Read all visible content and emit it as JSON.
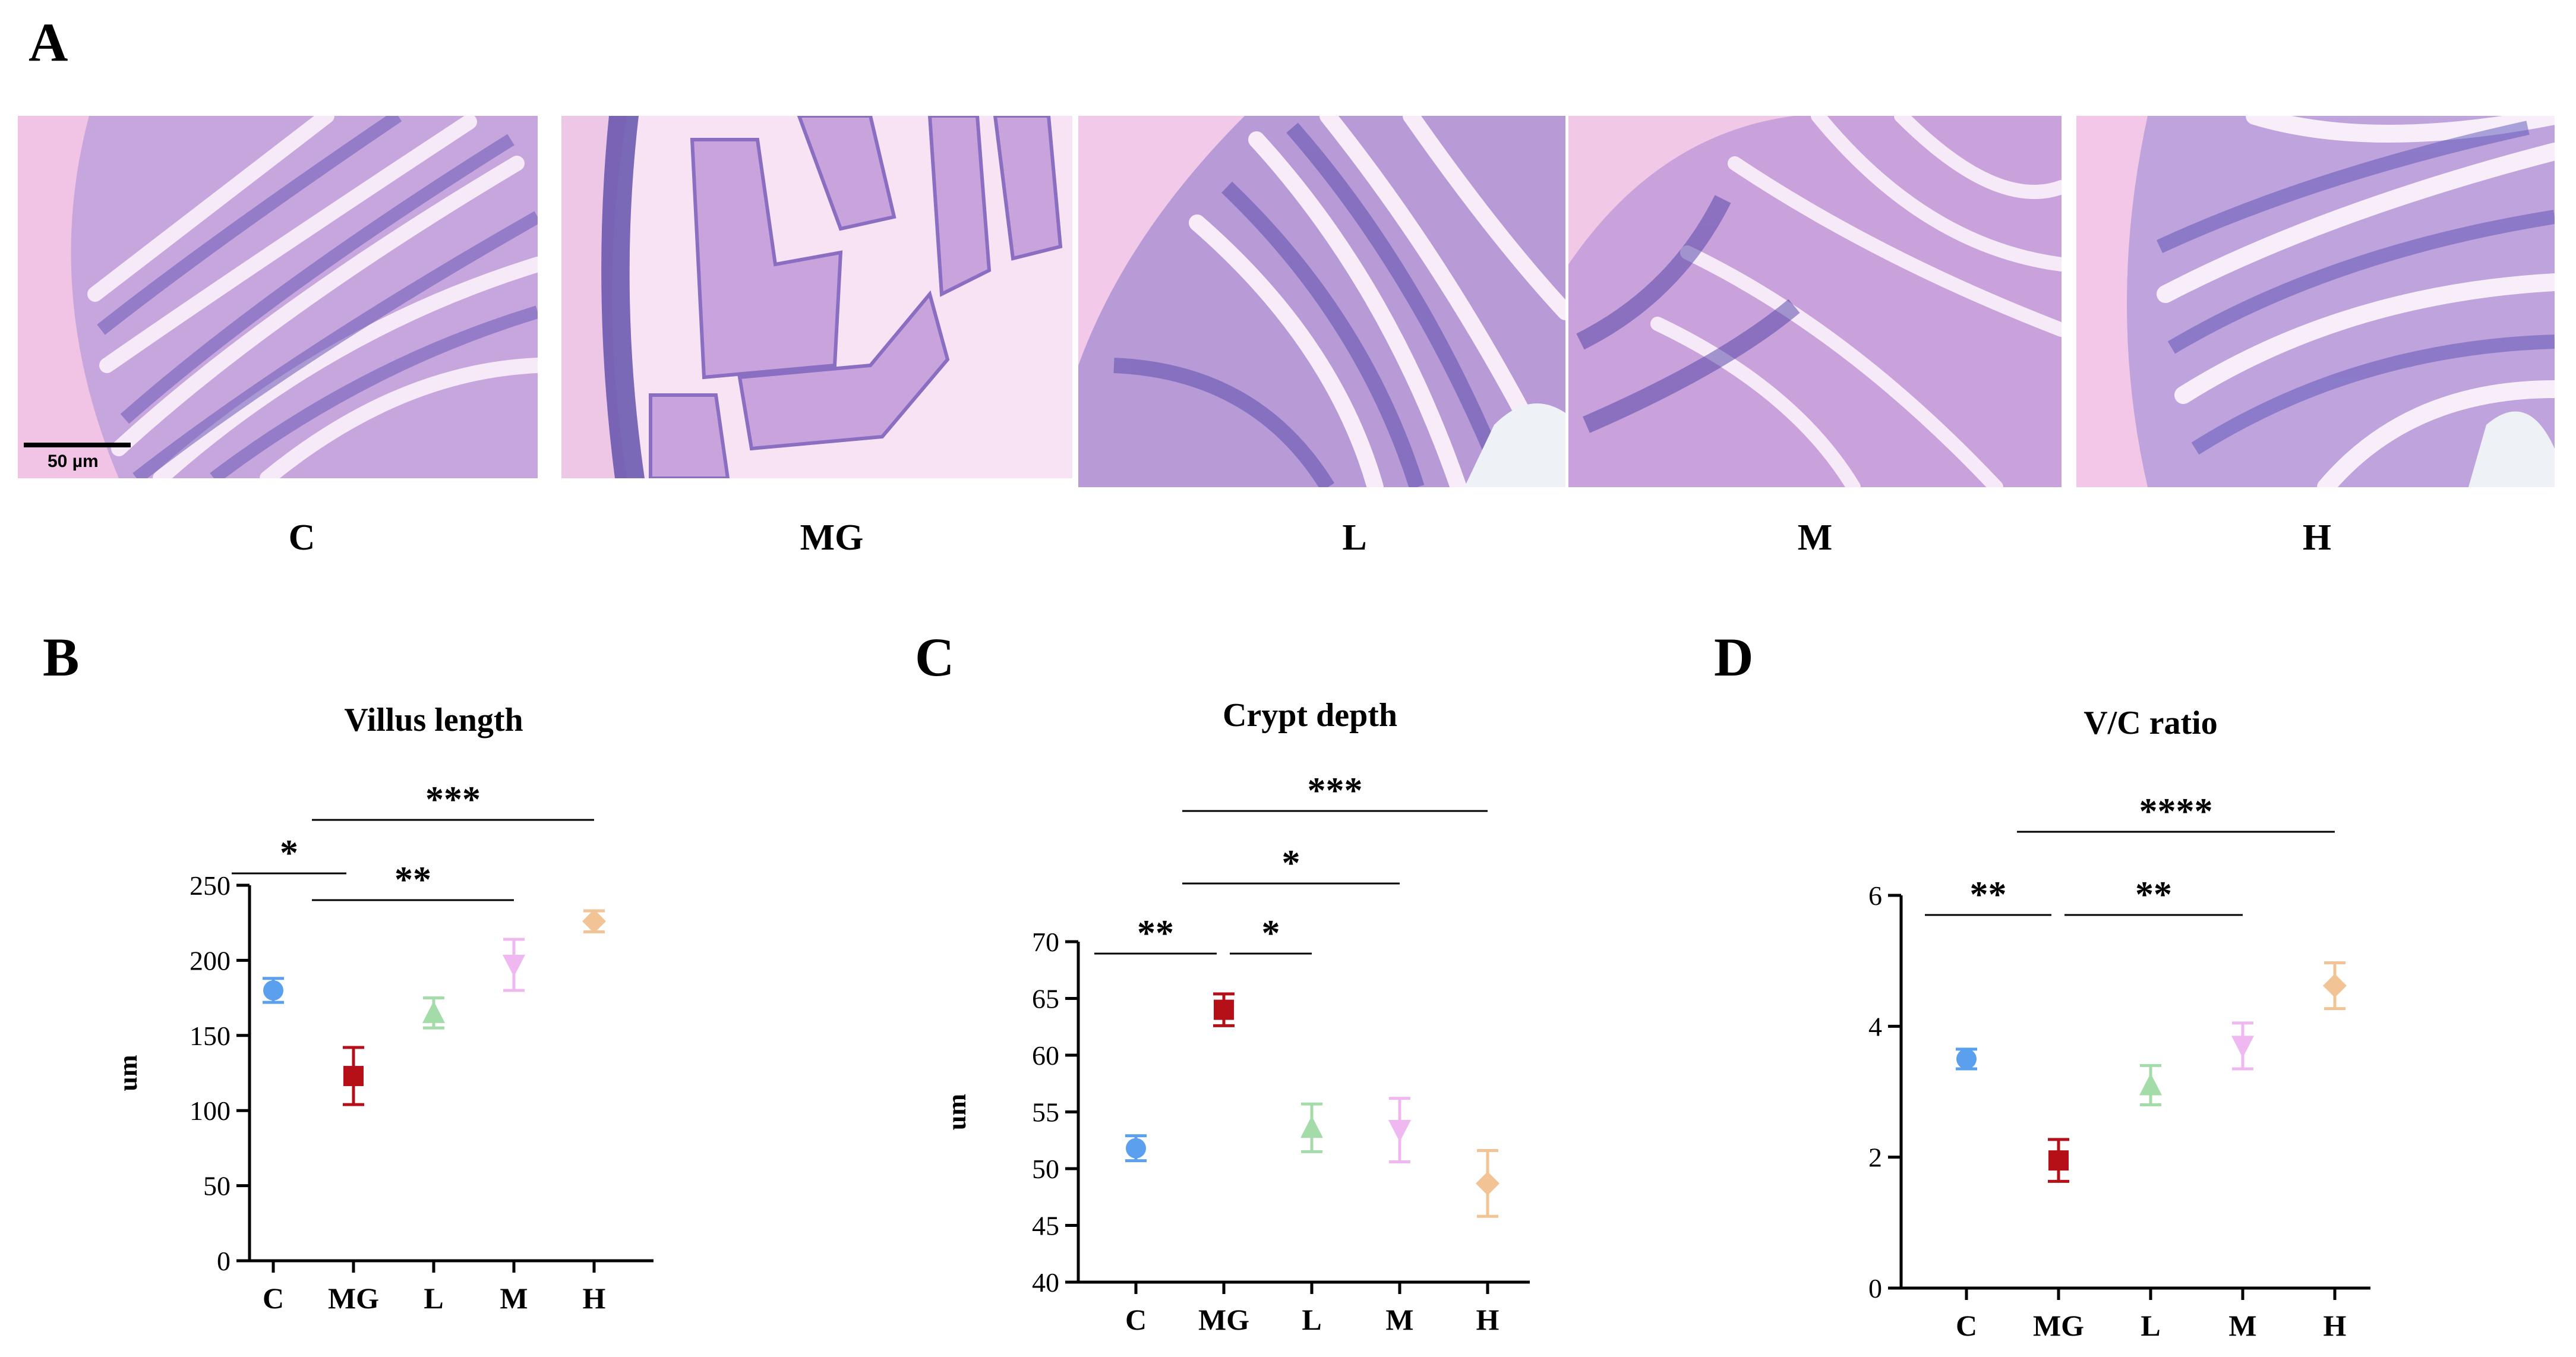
{
  "panels": {
    "a": "A",
    "b": "B",
    "c": "C",
    "d": "D"
  },
  "micrographs": {
    "scale_label": "50 µm",
    "labels": [
      "C",
      "MG",
      "L",
      "M",
      "H"
    ]
  },
  "chart_data": [
    {
      "type": "scatter",
      "title": "Villus length",
      "ylabel": "um",
      "xlabel": "",
      "categories": [
        "C",
        "MG",
        "L",
        "M",
        "H"
      ],
      "values": [
        180,
        123,
        165,
        197,
        226
      ],
      "errors": [
        8,
        19,
        10,
        17,
        7
      ],
      "ylim": [
        0,
        250
      ],
      "yticks": [
        0,
        50,
        100,
        150,
        200,
        250
      ],
      "colors": [
        "#5aa0ee",
        "#b51018",
        "#a3dca8",
        "#f0b8f0",
        "#f2c495"
      ],
      "markers": [
        "circle",
        "square",
        "triangle-up",
        "triangle-down",
        "diamond"
      ],
      "significance": [
        {
          "from": 0,
          "to": 1,
          "label": "*"
        },
        {
          "from": 1,
          "to": 3,
          "label": "**"
        },
        {
          "from": 1,
          "to": 4,
          "label": "***"
        }
      ]
    },
    {
      "type": "scatter",
      "title": "Crypt depth",
      "ylabel": "um",
      "xlabel": "",
      "categories": [
        "C",
        "MG",
        "L",
        "M",
        "H"
      ],
      "values": [
        51.8,
        64.0,
        53.6,
        53.4,
        48.7
      ],
      "errors": [
        1.1,
        1.4,
        2.1,
        2.8,
        2.9
      ],
      "ylim": [
        40,
        70
      ],
      "yticks": [
        40,
        45,
        50,
        55,
        60,
        65,
        70
      ],
      "colors": [
        "#5aa0ee",
        "#b51018",
        "#a3dca8",
        "#f0b8f0",
        "#f2c495"
      ],
      "markers": [
        "circle",
        "square",
        "triangle-up",
        "triangle-down",
        "diamond"
      ],
      "significance": [
        {
          "from": 0,
          "to": 1,
          "label": "**"
        },
        {
          "from": 1,
          "to": 2,
          "label": "*"
        },
        {
          "from": 1,
          "to": 3,
          "label": "*"
        },
        {
          "from": 1,
          "to": 4,
          "label": "***"
        }
      ]
    },
    {
      "type": "scatter",
      "title": "V/C ratio",
      "ylabel": "",
      "xlabel": "",
      "categories": [
        "C",
        "MG",
        "L",
        "M",
        "H"
      ],
      "values": [
        3.5,
        1.95,
        3.1,
        3.7,
        4.62
      ],
      "errors": [
        0.15,
        0.32,
        0.3,
        0.35,
        0.35
      ],
      "ylim": [
        0,
        6
      ],
      "yticks": [
        0,
        2,
        4,
        6
      ],
      "colors": [
        "#5aa0ee",
        "#b51018",
        "#a3dca8",
        "#f0b8f0",
        "#f2c495"
      ],
      "markers": [
        "circle",
        "square",
        "triangle-up",
        "triangle-down",
        "diamond"
      ],
      "significance": [
        {
          "from": 0,
          "to": 1,
          "label": "**"
        },
        {
          "from": 1,
          "to": 3,
          "label": "**"
        },
        {
          "from": 1,
          "to": 4,
          "label": "****"
        }
      ]
    }
  ]
}
